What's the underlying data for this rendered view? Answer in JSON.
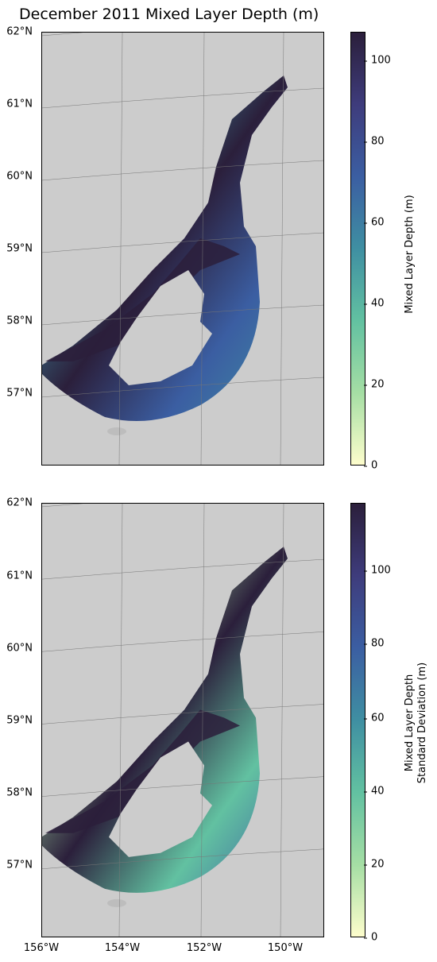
{
  "title": "December 2011 Mixed Layer Depth (m)",
  "colors": {
    "land": "#cccccc",
    "ocean_background": "#cccccc",
    "cmap_stops": [
      "#fdfdcc",
      "#a5dea4",
      "#62c1a1",
      "#3f8fa2",
      "#3b5ea2",
      "#3e3c7c",
      "#2b1f3b"
    ]
  },
  "icons": [],
  "chart_data": [
    {
      "type": "heatmap",
      "title": "December 2011 Mixed Layer Depth (m)",
      "xlabel": "",
      "ylabel": "",
      "x_ticks": [],
      "y_ticks": [
        "62°N",
        "61°N",
        "60°N",
        "59°N",
        "58°N",
        "57°N"
      ],
      "y_tick_values": [
        62,
        61,
        60,
        59,
        58,
        57
      ],
      "xlim": [
        -156,
        -149
      ],
      "ylim": [
        56.0,
        62.0
      ],
      "grid": true,
      "colorbar": {
        "label": "Mixed Layer Depth (m)",
        "range": [
          0,
          107
        ],
        "ticks": [
          0,
          20,
          40,
          60,
          80,
          100
        ],
        "tick_labels": [
          "0",
          "20",
          "40",
          "60",
          "80",
          "100"
        ]
      }
    },
    {
      "type": "heatmap",
      "title": "",
      "xlabel": "",
      "ylabel": "",
      "x_ticks": [
        "156°W",
        "154°W",
        "152°W",
        "150°W"
      ],
      "x_tick_values": [
        -156,
        -154,
        -152,
        -150
      ],
      "y_ticks": [
        "62°N",
        "61°N",
        "60°N",
        "59°N",
        "58°N",
        "57°N"
      ],
      "y_tick_values": [
        62,
        61,
        60,
        59,
        58,
        57
      ],
      "xlim": [
        -156,
        -149
      ],
      "ylim": [
        56.0,
        62.0
      ],
      "grid": true,
      "colorbar": {
        "label": "Mixed Layer Depth\nStandard Deviation (m)",
        "label_line1": "Mixed Layer Depth",
        "label_line2": "Standard Deviation (m)",
        "range": [
          0,
          118
        ],
        "ticks": [
          0,
          20,
          40,
          60,
          80,
          100
        ],
        "tick_labels": [
          "0",
          "20",
          "40",
          "60",
          "80",
          "100"
        ]
      }
    }
  ]
}
